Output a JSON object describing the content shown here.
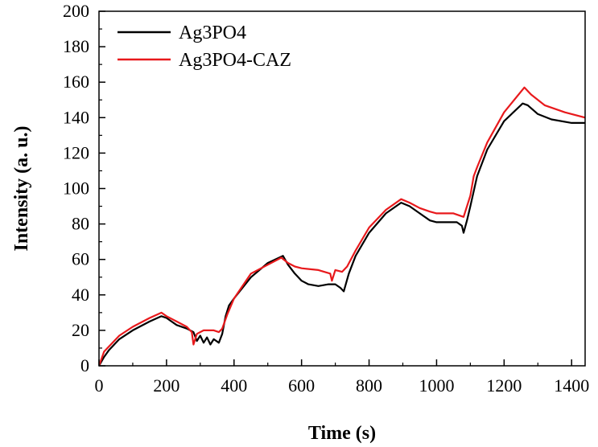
{
  "chart_data": {
    "type": "line",
    "title": "",
    "xlabel": "Time (s)",
    "ylabel": "Intensity (a. u.)",
    "xlim": [
      0,
      1440
    ],
    "ylim": [
      0,
      200
    ],
    "xticks": [
      0,
      200,
      400,
      600,
      800,
      1000,
      1200,
      1400
    ],
    "yticks": [
      0,
      20,
      40,
      60,
      80,
      100,
      120,
      140,
      160,
      180,
      200
    ],
    "legend_position": "top-left",
    "grid": false,
    "series": [
      {
        "name": "Ag3PO4",
        "color": "#000000",
        "points": [
          [
            0,
            0
          ],
          [
            15,
            5
          ],
          [
            30,
            9
          ],
          [
            60,
            15
          ],
          [
            100,
            20
          ],
          [
            150,
            25
          ],
          [
            185,
            28
          ],
          [
            200,
            27
          ],
          [
            230,
            23
          ],
          [
            260,
            21
          ],
          [
            280,
            19
          ],
          [
            290,
            14
          ],
          [
            300,
            17
          ],
          [
            310,
            13
          ],
          [
            320,
            16
          ],
          [
            330,
            12
          ],
          [
            340,
            15
          ],
          [
            355,
            13
          ],
          [
            365,
            18
          ],
          [
            375,
            28
          ],
          [
            385,
            34
          ],
          [
            400,
            38
          ],
          [
            450,
            50
          ],
          [
            500,
            58
          ],
          [
            545,
            62
          ],
          [
            560,
            57
          ],
          [
            580,
            52
          ],
          [
            600,
            48
          ],
          [
            620,
            46
          ],
          [
            650,
            45
          ],
          [
            680,
            46
          ],
          [
            700,
            46
          ],
          [
            715,
            44
          ],
          [
            725,
            42
          ],
          [
            740,
            52
          ],
          [
            760,
            62
          ],
          [
            800,
            75
          ],
          [
            850,
            86
          ],
          [
            895,
            92
          ],
          [
            920,
            90
          ],
          [
            950,
            86
          ],
          [
            980,
            82
          ],
          [
            1000,
            81
          ],
          [
            1030,
            81
          ],
          [
            1060,
            81
          ],
          [
            1075,
            79
          ],
          [
            1080,
            75
          ],
          [
            1090,
            82
          ],
          [
            1100,
            90
          ],
          [
            1120,
            107
          ],
          [
            1150,
            122
          ],
          [
            1200,
            138
          ],
          [
            1255,
            148
          ],
          [
            1270,
            147
          ],
          [
            1300,
            142
          ],
          [
            1340,
            139
          ],
          [
            1400,
            137
          ],
          [
            1440,
            137
          ]
        ]
      },
      {
        "name": "Ag3PO4-CAZ",
        "color": "#e8191c",
        "points": [
          [
            0,
            0
          ],
          [
            15,
            8
          ],
          [
            30,
            11
          ],
          [
            60,
            17
          ],
          [
            100,
            22
          ],
          [
            150,
            27
          ],
          [
            185,
            30
          ],
          [
            200,
            28
          ],
          [
            230,
            25
          ],
          [
            260,
            22
          ],
          [
            275,
            19
          ],
          [
            280,
            12
          ],
          [
            290,
            18
          ],
          [
            310,
            20
          ],
          [
            340,
            20
          ],
          [
            355,
            19
          ],
          [
            365,
            21
          ],
          [
            380,
            29
          ],
          [
            400,
            38
          ],
          [
            450,
            52
          ],
          [
            500,
            57
          ],
          [
            540,
            61
          ],
          [
            560,
            58
          ],
          [
            580,
            56
          ],
          [
            600,
            55
          ],
          [
            650,
            54
          ],
          [
            685,
            52
          ],
          [
            690,
            48
          ],
          [
            700,
            54
          ],
          [
            720,
            53
          ],
          [
            735,
            56
          ],
          [
            760,
            65
          ],
          [
            800,
            78
          ],
          [
            850,
            88
          ],
          [
            895,
            94
          ],
          [
            920,
            92
          ],
          [
            950,
            89
          ],
          [
            980,
            87
          ],
          [
            1000,
            86
          ],
          [
            1050,
            86
          ],
          [
            1080,
            84
          ],
          [
            1100,
            96
          ],
          [
            1110,
            107
          ],
          [
            1120,
            112
          ],
          [
            1150,
            126
          ],
          [
            1200,
            143
          ],
          [
            1260,
            157
          ],
          [
            1280,
            153
          ],
          [
            1320,
            147
          ],
          [
            1380,
            143
          ],
          [
            1440,
            140
          ]
        ]
      }
    ]
  }
}
